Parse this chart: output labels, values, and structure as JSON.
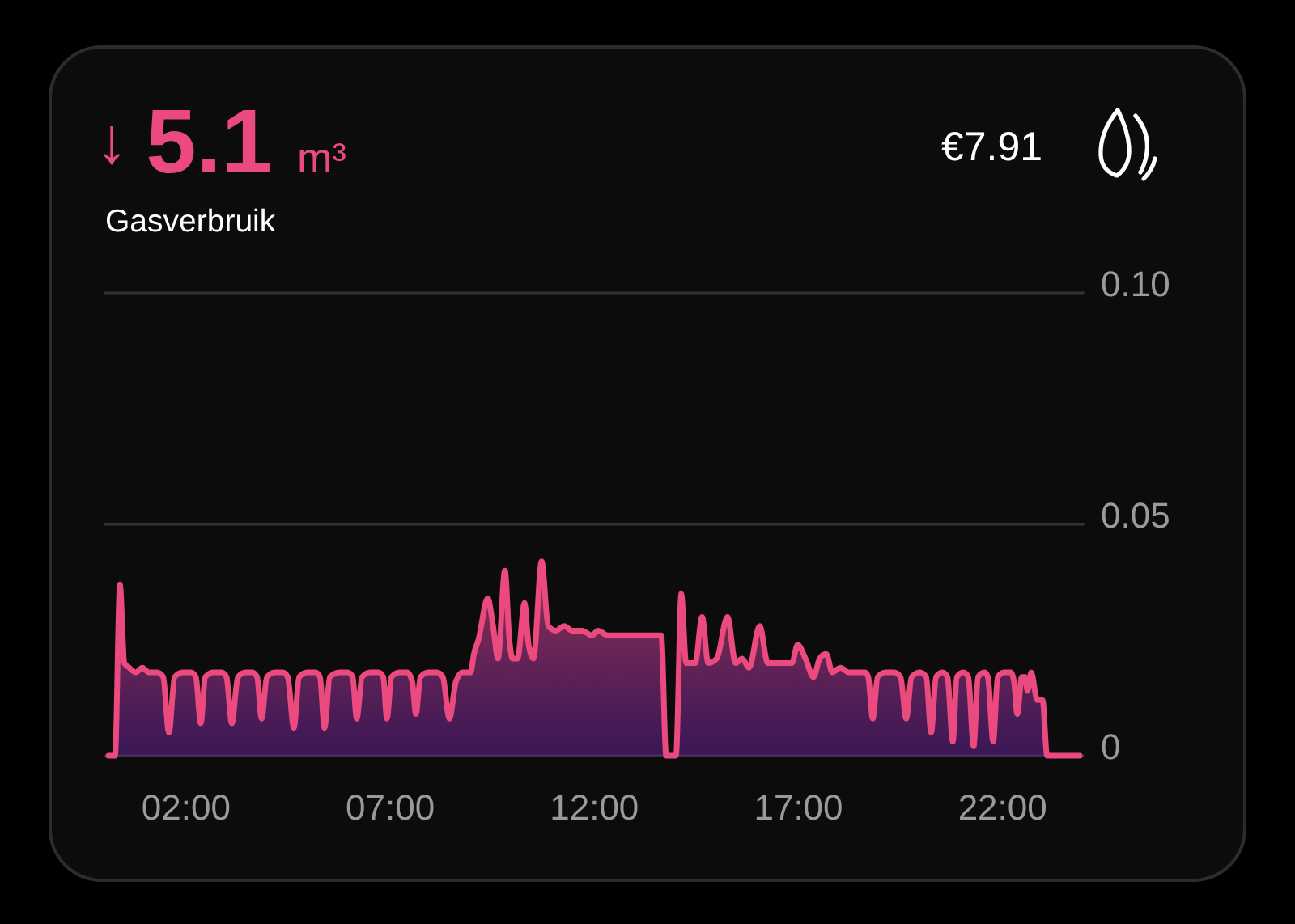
{
  "chart_data": {
    "type": "area",
    "title": "↓ 5.1 m³",
    "subtitle": "Gasverbruik",
    "annotations": [
      "€7.91"
    ],
    "color": "#ea4a7e",
    "x": [
      0.1,
      0.26,
      0.38,
      0.49,
      0.61,
      0.77,
      0.93,
      1.09,
      1.29,
      1.44,
      1.58,
      1.72,
      1.92,
      2.12,
      2.24,
      2.36,
      2.47,
      2.67,
      2.87,
      2.99,
      3.12,
      3.27,
      3.46,
      3.62,
      3.74,
      3.85,
      3.98,
      4.18,
      4.37,
      4.49,
      4.64,
      4.77,
      4.97,
      5.17,
      5.28,
      5.39,
      5.52,
      5.76,
      5.96,
      6.08,
      6.18,
      6.31,
      6.51,
      6.71,
      6.83,
      6.92,
      7.03,
      7.23,
      7.42,
      7.54,
      7.63,
      7.74,
      7.94,
      8.14,
      8.29,
      8.45,
      8.61,
      8.77,
      8.97,
      9.05,
      9.16,
      9.39,
      9.52,
      9.64,
      9.81,
      9.92,
      10.0,
      10.12,
      10.29,
      10.39,
      10.51,
      10.71,
      10.87,
      11.06,
      11.26,
      11.46,
      11.7,
      11.94,
      12.09,
      12.33,
      12.53,
      12.73,
      12.97,
      13.2,
      13.44,
      13.64,
      13.76,
      14.0,
      14.13,
      14.25,
      14.47,
      14.64,
      14.79,
      15.0,
      15.26,
      15.46,
      15.62,
      15.79,
      16.05,
      16.25,
      16.45,
      16.69,
      16.84,
      16.98,
      17.17,
      17.37,
      17.52,
      17.68,
      17.83,
      18.03,
      18.23,
      18.43,
      18.63,
      18.71,
      18.82,
      18.94,
      19.14,
      19.34,
      19.5,
      19.64,
      19.77,
      19.97,
      20.13,
      20.25,
      20.37,
      20.53,
      20.65,
      20.78,
      20.88,
      21.04,
      21.16,
      21.29,
      21.4,
      21.56,
      21.64,
      21.77,
      21.88,
      22.04,
      22.2,
      22.28,
      22.36,
      22.47,
      22.55,
      22.61,
      22.7,
      22.85,
      22.98,
      23.09,
      23.89
    ],
    "values": [
      0,
      0,
      0.037,
      0.02,
      0.019,
      0.018,
      0.019,
      0.018,
      0.018,
      0.017,
      0.005,
      0.017,
      0.018,
      0.018,
      0.017,
      0.007,
      0.017,
      0.018,
      0.018,
      0.017,
      0.007,
      0.017,
      0.018,
      0.018,
      0.017,
      0.008,
      0.017,
      0.018,
      0.018,
      0.017,
      0.006,
      0.017,
      0.018,
      0.018,
      0.017,
      0.006,
      0.017,
      0.018,
      0.018,
      0.017,
      0.008,
      0.017,
      0.018,
      0.018,
      0.017,
      0.008,
      0.017,
      0.018,
      0.018,
      0.016,
      0.009,
      0.017,
      0.018,
      0.018,
      0.017,
      0.008,
      0.016,
      0.018,
      0.018,
      0.022,
      0.025,
      0.034,
      0.028,
      0.021,
      0.04,
      0.025,
      0.021,
      0.021,
      0.033,
      0.024,
      0.021,
      0.042,
      0.028,
      0.027,
      0.028,
      0.027,
      0.027,
      0.026,
      0.027,
      0.026,
      0.026,
      0.026,
      0.026,
      0.026,
      0.026,
      0.026,
      0,
      0,
      0.035,
      0.02,
      0.02,
      0.03,
      0.02,
      0.021,
      0.03,
      0.02,
      0.021,
      0.019,
      0.028,
      0.02,
      0.02,
      0.02,
      0.02,
      0.024,
      0.021,
      0.017,
      0.021,
      0.022,
      0.018,
      0.019,
      0.018,
      0.018,
      0.018,
      0.017,
      0.008,
      0.017,
      0.018,
      0.018,
      0.017,
      0.008,
      0.017,
      0.018,
      0.017,
      0.005,
      0.017,
      0.018,
      0.017,
      0.003,
      0.017,
      0.018,
      0.017,
      0.002,
      0.017,
      0.018,
      0.017,
      0.003,
      0.017,
      0.018,
      0.018,
      0.016,
      0.009,
      0.017,
      0.017,
      0.014,
      0.018,
      0.012,
      0.012,
      0,
      0
    ],
    "xlim": [
      0,
      24
    ],
    "xticks": [
      {
        "value": 2,
        "label": "02:00"
      },
      {
        "value": 7,
        "label": "07:00"
      },
      {
        "value": 12,
        "label": "12:00"
      },
      {
        "value": 17,
        "label": "17:00"
      },
      {
        "value": 22,
        "label": "22:00"
      }
    ],
    "ylim": [
      0,
      0.1
    ],
    "yticks": [
      0,
      0.05,
      {
        "value": 0.1,
        "label": "0.10"
      }
    ],
    "grid": "y"
  }
}
